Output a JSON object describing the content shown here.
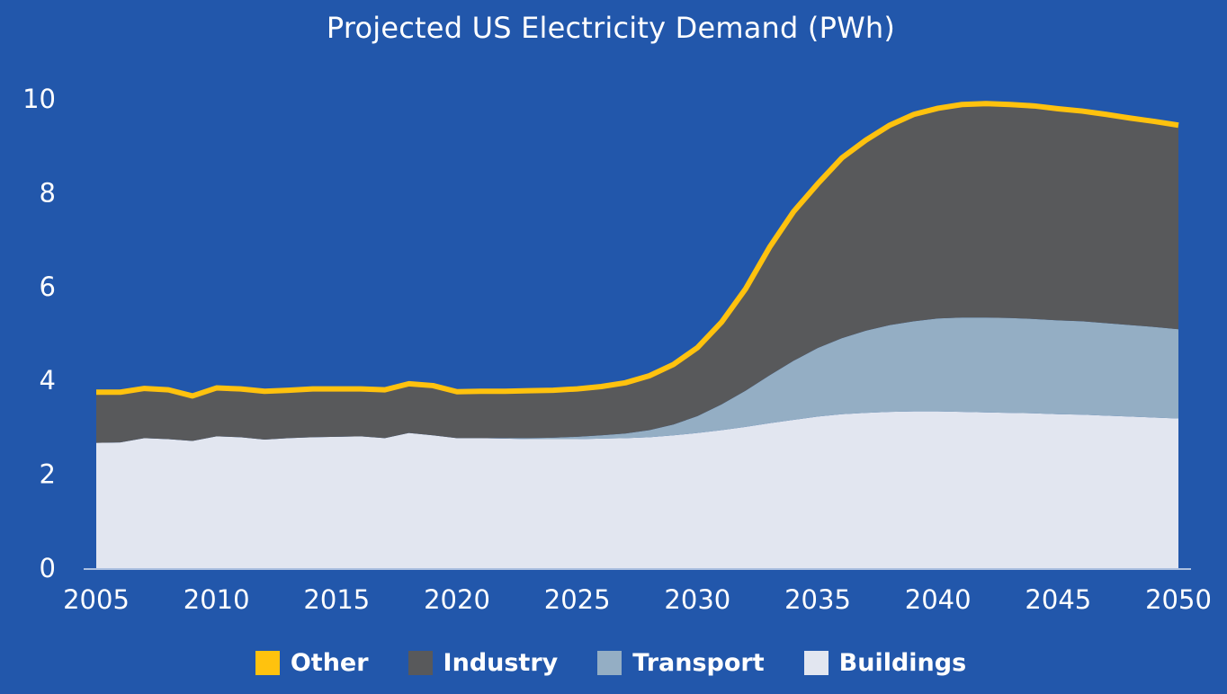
{
  "chart_data": {
    "type": "area",
    "stacked": true,
    "title": "Projected US Electricity Demand (PWh)",
    "xlabel": "",
    "ylabel": "",
    "xlim": [
      2005,
      2050
    ],
    "ylim": [
      0,
      10
    ],
    "x_ticks": [
      "2005",
      "2010",
      "2015",
      "2020",
      "2025",
      "2030",
      "2035",
      "2040",
      "2045",
      "2050"
    ],
    "y_ticks": [
      "0",
      "2",
      "4",
      "6",
      "8",
      "10"
    ],
    "grid": false,
    "legend_position": "bottom",
    "x": [
      2005,
      2006,
      2007,
      2008,
      2009,
      2010,
      2011,
      2012,
      2013,
      2014,
      2015,
      2016,
      2017,
      2018,
      2019,
      2020,
      2021,
      2022,
      2023,
      2024,
      2025,
      2026,
      2027,
      2028,
      2029,
      2030,
      2031,
      2032,
      2033,
      2034,
      2035,
      2036,
      2037,
      2038,
      2039,
      2040,
      2041,
      2042,
      2043,
      2044,
      2045,
      2046,
      2047,
      2048,
      2049,
      2050
    ],
    "series": [
      {
        "name": "Buildings",
        "color": "#e2e6f0",
        "values": [
          2.67,
          2.68,
          2.77,
          2.75,
          2.71,
          2.81,
          2.79,
          2.74,
          2.77,
          2.79,
          2.8,
          2.81,
          2.77,
          2.88,
          2.83,
          2.77,
          2.77,
          2.76,
          2.75,
          2.75,
          2.75,
          2.76,
          2.77,
          2.79,
          2.83,
          2.88,
          2.94,
          3.01,
          3.09,
          3.16,
          3.23,
          3.28,
          3.31,
          3.33,
          3.34,
          3.34,
          3.33,
          3.32,
          3.31,
          3.3,
          3.28,
          3.27,
          3.25,
          3.23,
          3.21,
          3.19
        ]
      },
      {
        "name": "Transport",
        "color": "#94aec4",
        "values": [
          0.0,
          0.0,
          0.0,
          0.0,
          0.0,
          0.0,
          0.0,
          0.0,
          0.0,
          0.0,
          0.0,
          0.0,
          0.0,
          0.0,
          0.0,
          0.0,
          0.0,
          0.01,
          0.02,
          0.03,
          0.05,
          0.07,
          0.1,
          0.15,
          0.23,
          0.36,
          0.55,
          0.77,
          1.02,
          1.26,
          1.46,
          1.62,
          1.75,
          1.85,
          1.92,
          1.98,
          2.01,
          2.02,
          2.02,
          2.01,
          2.0,
          1.99,
          1.97,
          1.95,
          1.93,
          1.9
        ]
      },
      {
        "name": "Industry",
        "color": "#58595b",
        "values": [
          1.05,
          1.04,
          1.03,
          1.02,
          0.93,
          1.0,
          1.0,
          1.0,
          0.99,
          1.0,
          0.99,
          0.98,
          1.0,
          1.02,
          1.03,
          0.96,
          0.97,
          0.97,
          0.98,
          0.98,
          0.99,
          1.01,
          1.05,
          1.13,
          1.25,
          1.43,
          1.72,
          2.14,
          2.7,
          3.15,
          3.47,
          3.81,
          4.03,
          4.23,
          4.38,
          4.45,
          4.51,
          4.53,
          4.52,
          4.51,
          4.48,
          4.45,
          4.42,
          4.38,
          4.35,
          4.32
        ]
      },
      {
        "name": "Other",
        "color": "#ffc20e",
        "values": [
          0.03,
          0.03,
          0.03,
          0.03,
          0.03,
          0.03,
          0.03,
          0.03,
          0.03,
          0.03,
          0.03,
          0.03,
          0.03,
          0.03,
          0.03,
          0.03,
          0.03,
          0.03,
          0.03,
          0.03,
          0.03,
          0.03,
          0.03,
          0.03,
          0.03,
          0.03,
          0.03,
          0.03,
          0.03,
          0.03,
          0.03,
          0.03,
          0.03,
          0.03,
          0.03,
          0.03,
          0.03,
          0.03,
          0.03,
          0.03,
          0.03,
          0.03,
          0.03,
          0.03,
          0.03,
          0.03
        ]
      }
    ],
    "legend_order": [
      "Other",
      "Industry",
      "Transport",
      "Buildings"
    ]
  }
}
